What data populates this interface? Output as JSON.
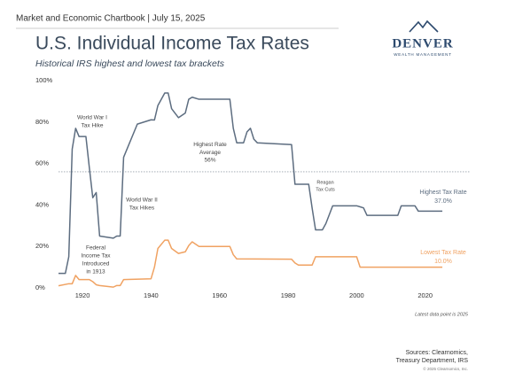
{
  "header": {
    "text": "Market and Economic Chartbook | July 15, 2025"
  },
  "logo": {
    "name": "DENVER",
    "tagline": "WEALTH MANAGEMENT"
  },
  "chart_data": {
    "type": "line",
    "title": "U.S. Individual Income Tax Rates",
    "subtitle": "Historical IRS highest and lowest tax brackets",
    "xlim": [
      1913,
      2033
    ],
    "xticks": [
      1920,
      1940,
      1960,
      1980,
      2000,
      2020
    ],
    "ylim": [
      0,
      100
    ],
    "yticks": [
      {
        "value": 0,
        "label": "0%"
      },
      {
        "value": 20,
        "label": "20%"
      },
      {
        "value": 40,
        "label": "40%"
      },
      {
        "value": 60,
        "label": "60%"
      },
      {
        "value": 80,
        "label": "80%"
      },
      {
        "value": 100,
        "label": "100%"
      }
    ],
    "grid": false,
    "average": {
      "name": "Highest Rate Average",
      "value": 56,
      "label": "56%",
      "color": "#9aa3ad"
    },
    "series": [
      {
        "name": "Highest Tax Rate",
        "color": "#5d6d80",
        "end_label": "37.0%",
        "x": [
          1913,
          1915,
          1916,
          1917,
          1918,
          1919,
          1921,
          1922,
          1923,
          1924,
          1925,
          1929,
          1930,
          1931,
          1932,
          1936,
          1940,
          1941,
          1942,
          1944,
          1945,
          1946,
          1948,
          1950,
          1951,
          1952,
          1954,
          1963,
          1964,
          1965,
          1967,
          1968,
          1969,
          1970,
          1971,
          1981,
          1982,
          1986,
          1987,
          1988,
          1990,
          1991,
          1993,
          2000,
          2001,
          2002,
          2003,
          2012,
          2013,
          2017,
          2018,
          2025
        ],
        "values": [
          7,
          7,
          15,
          67,
          77,
          73,
          73,
          58,
          43.5,
          46,
          25,
          24,
          25,
          25,
          63,
          79,
          81.1,
          81,
          88,
          94,
          94,
          86.45,
          82.13,
          84.36,
          91,
          92,
          91,
          91,
          77,
          70,
          70,
          75.25,
          77,
          71.75,
          70,
          69.13,
          50,
          50,
          38.5,
          28,
          28,
          31,
          39.6,
          39.6,
          39.1,
          38.6,
          35,
          35,
          39.6,
          39.6,
          37,
          37
        ]
      },
      {
        "name": "Lowest Tax Rate",
        "color": "#f0a262",
        "end_label": "10.0%",
        "x": [
          1913,
          1916,
          1917,
          1918,
          1919,
          1922,
          1923,
          1924,
          1925,
          1929,
          1930,
          1931,
          1932,
          1940,
          1941,
          1942,
          1944,
          1945,
          1946,
          1948,
          1950,
          1951,
          1952,
          1954,
          1963,
          1964,
          1965,
          1981,
          1982,
          1983,
          1987,
          1988,
          1993,
          2000,
          2001,
          2025
        ],
        "values": [
          1,
          2,
          2,
          6,
          4,
          4,
          3,
          1.5,
          1.125,
          0.375,
          1.125,
          1.125,
          4,
          4.4,
          10,
          19,
          23,
          23,
          19,
          16.6,
          17.4,
          20.4,
          22.2,
          20,
          20,
          16,
          14,
          13.825,
          12,
          11,
          11,
          15,
          15,
          15,
          10,
          10
        ]
      }
    ],
    "annotations": [
      [
        "World War I",
        "Tax Hike"
      ],
      [
        "World War II",
        "Tax Hikes"
      ],
      [
        "Reagan",
        "Tax Cuts"
      ],
      [
        "Federal",
        "Income Tax",
        "Introduced",
        "in 1913"
      ]
    ],
    "note": "Latest data point is 2025",
    "source": [
      "Sources: Clearnomics,",
      "Treasury Department, IRS"
    ],
    "copyright": "© 2025 Clearnomics, Inc."
  }
}
